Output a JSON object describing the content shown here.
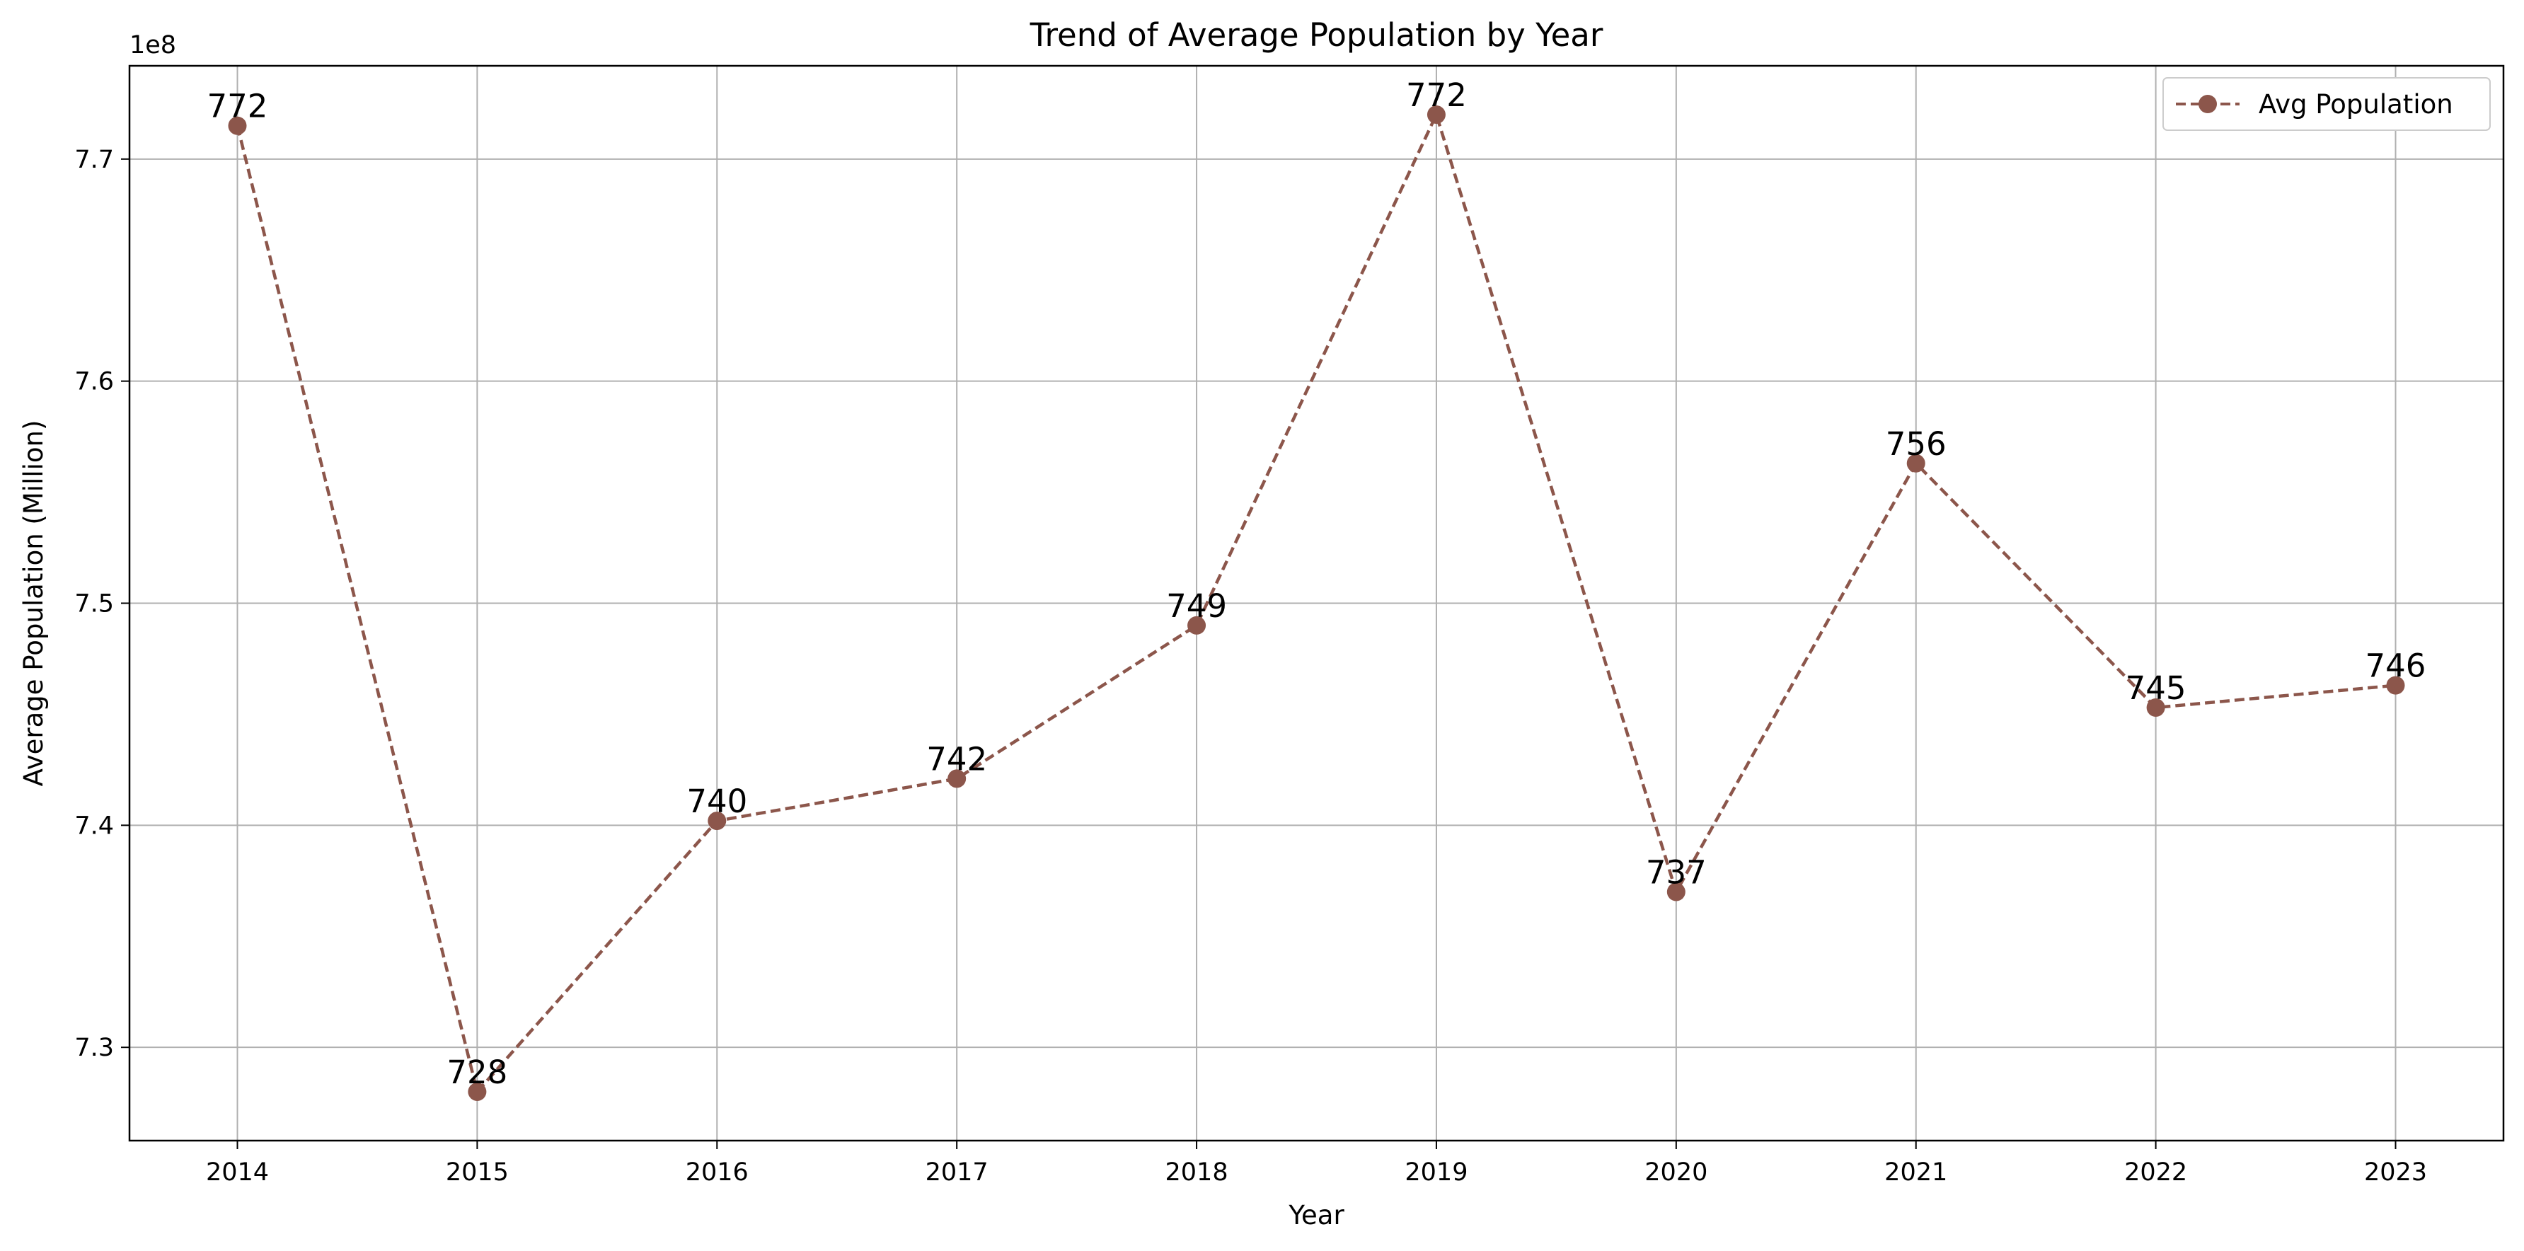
{
  "chart_data": {
    "type": "line",
    "title": "Trend of Average Population by Year",
    "xlabel": "Year",
    "ylabel": "Average Population (Million)",
    "y_offset_label": "1e8",
    "x": [
      2014,
      2015,
      2016,
      2017,
      2018,
      2019,
      2020,
      2021,
      2022,
      2023
    ],
    "series": [
      {
        "name": "Avg Population",
        "values": [
          771500000,
          728000000,
          740200000,
          742100000,
          749000000,
          772000000,
          737000000,
          756300000,
          745300000,
          746300000
        ],
        "labels": [
          "772",
          "728",
          "740",
          "742",
          "749",
          "772",
          "737",
          "756",
          "745",
          "746"
        ],
        "color": "#8c564b",
        "line_style": "dashed",
        "marker": "circle"
      }
    ],
    "xlim": [
      2013.55,
      2023.45
    ],
    "ylim": [
      725800000,
      774200000
    ],
    "yticks": [
      730000000,
      740000000,
      750000000,
      760000000,
      770000000
    ],
    "ytick_labels": [
      "7.3",
      "7.4",
      "7.5",
      "7.6",
      "7.7"
    ],
    "xtick_labels": [
      "2014",
      "2015",
      "2016",
      "2017",
      "2018",
      "2019",
      "2020",
      "2021",
      "2022",
      "2023"
    ],
    "grid": true,
    "legend_position": "top-right"
  }
}
